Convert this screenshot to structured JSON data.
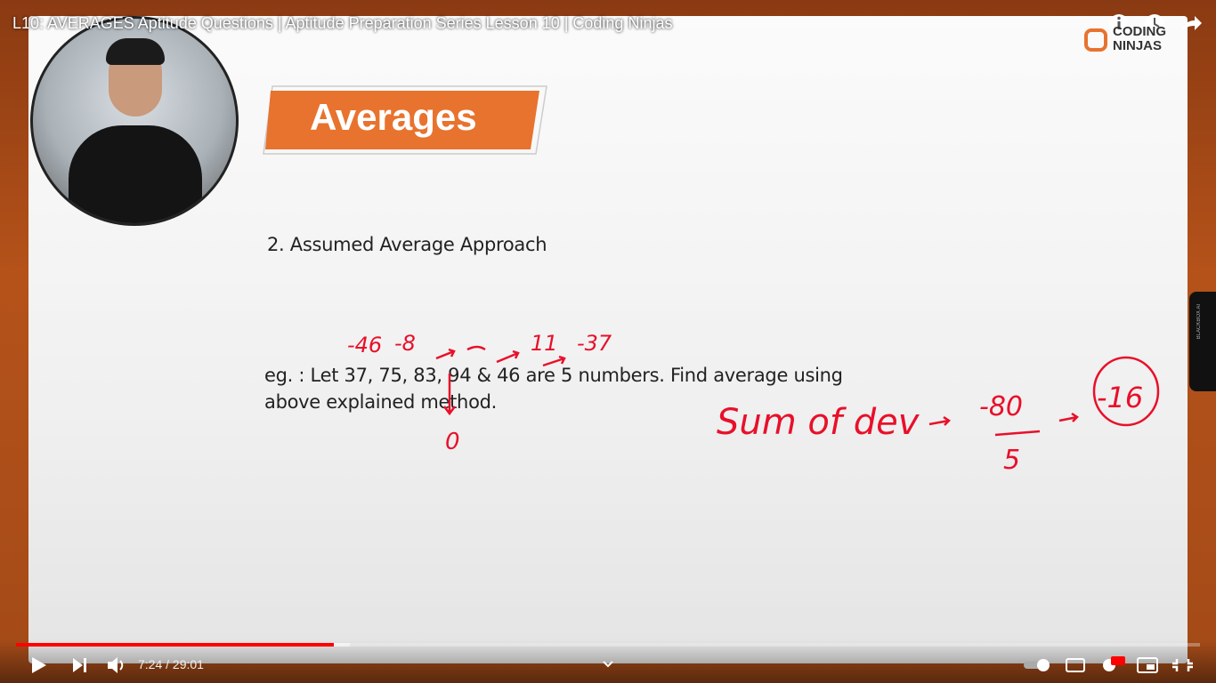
{
  "player": {
    "title": "L10: AVERAGES Aptitude Questions | Aptitude Preparation Series Lesson 10 | Coding Ninjas",
    "time": "7:24 / 29:01",
    "side_tab": "BLACKBOX AI"
  },
  "logo": {
    "line1": "CODING",
    "line2": "NINJAS"
  },
  "slide": {
    "heading": "Averages",
    "subheading": "2. Assumed Average Approach",
    "example": [
      "eg. : Let 37, 75, 83, 94 & 46 are 5 numbers. Find average using",
      "above explained method."
    ]
  },
  "annotations": {
    "deviations": [
      "-46",
      "-8",
      "11",
      "-37"
    ],
    "zero": "0",
    "sum_label": "Sum of dev",
    "numerator": "-80",
    "denominator": "5",
    "result": "-16"
  }
}
